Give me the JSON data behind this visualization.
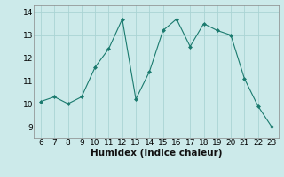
{
  "x": [
    6,
    7,
    8,
    9,
    10,
    11,
    12,
    13,
    14,
    15,
    16,
    17,
    18,
    19,
    20,
    21,
    22,
    23
  ],
  "y": [
    10.1,
    10.3,
    10.0,
    10.3,
    11.6,
    12.4,
    13.7,
    10.2,
    11.4,
    13.2,
    13.7,
    12.5,
    13.5,
    13.2,
    13.0,
    11.1,
    9.9,
    9.0
  ],
  "line_color": "#1a7a6e",
  "marker": "D",
  "marker_size": 2.0,
  "bg_color": "#cceaea",
  "grid_color": "#aad4d4",
  "xlabel": "Humidex (Indice chaleur)",
  "xlim": [
    5.5,
    23.5
  ],
  "ylim": [
    8.5,
    14.3
  ],
  "yticks": [
    9,
    10,
    11,
    12,
    13,
    14
  ],
  "xticks": [
    6,
    7,
    8,
    9,
    10,
    11,
    12,
    13,
    14,
    15,
    16,
    17,
    18,
    19,
    20,
    21,
    22,
    23
  ],
  "tick_fontsize": 6.5,
  "xlabel_fontsize": 7.5
}
